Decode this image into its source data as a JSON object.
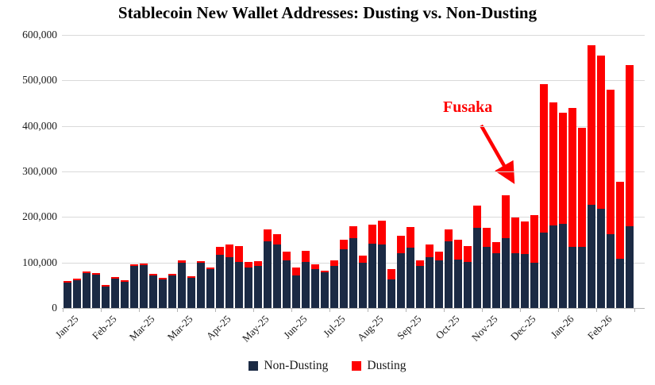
{
  "chart_data": {
    "type": "bar",
    "stacked": true,
    "title": "Stablecoin New Wallet Addresses: Dusting vs. Non-Dusting",
    "xlabel": "",
    "ylabel": "",
    "ylim": [
      0,
      600000
    ],
    "y_tick_interval": 100000,
    "y_tick_labels": [
      "0",
      "100,000",
      "200,000",
      "300,000",
      "400,000",
      "500,000",
      "600,000"
    ],
    "x_tick_labels": [
      "Jan-25",
      "Feb-25",
      "Mar-25",
      "Mar-25",
      "Apr-25",
      "May-25",
      "Jun-25",
      "Jul-25",
      "Aug-25",
      "Sep-25",
      "Oct-25",
      "Nov-25",
      "Dec-25",
      "Jan-26",
      "Feb-26"
    ],
    "bars_per_x_label": 4,
    "grid": "horizontal",
    "legend_position": "bottom",
    "series": [
      {
        "name": "Non-Dusting",
        "color": "#1b2a44",
        "values": [
          56000,
          61000,
          77000,
          73000,
          47000,
          64000,
          58000,
          93000,
          94000,
          71000,
          63000,
          71000,
          100000,
          67000,
          100000,
          86000,
          117000,
          112000,
          102000,
          89000,
          93000,
          147000,
          140000,
          105000,
          72000,
          102000,
          85000,
          78000,
          92000,
          129000,
          154000,
          100000,
          141000,
          139000,
          62000,
          121000,
          132000,
          93000,
          112000,
          105000,
          147000,
          107000,
          102000,
          177000,
          134000,
          120000,
          154000,
          121000,
          119000,
          100000,
          166000,
          182000,
          185000,
          134000,
          134000,
          226000,
          218000,
          163000,
          109000,
          179000
        ]
      },
      {
        "name": "Dusting",
        "color": "#fe0000",
        "values": [
          4000,
          3000,
          3000,
          3000,
          3000,
          3000,
          3000,
          3000,
          3000,
          3000,
          3000,
          3000,
          6000,
          3000,
          3000,
          3000,
          17000,
          28000,
          35000,
          13000,
          10000,
          26000,
          22000,
          19000,
          17000,
          25000,
          10000,
          4000,
          13000,
          21000,
          27000,
          15000,
          41000,
          53000,
          23000,
          38000,
          45000,
          12000,
          28000,
          20000,
          26000,
          43000,
          35000,
          49000,
          41000,
          24000,
          94000,
          79000,
          72000,
          104000,
          327000,
          271000,
          245000,
          305000,
          261000,
          351000,
          336000,
          317000,
          169000,
          354000
        ]
      }
    ],
    "annotation": {
      "text": "Fusaka",
      "color": "#fe0000",
      "points_to": "Dec-25 bar"
    }
  },
  "legend": {
    "non_dusting_label": "Non-Dusting",
    "dusting_label": "Dusting"
  }
}
